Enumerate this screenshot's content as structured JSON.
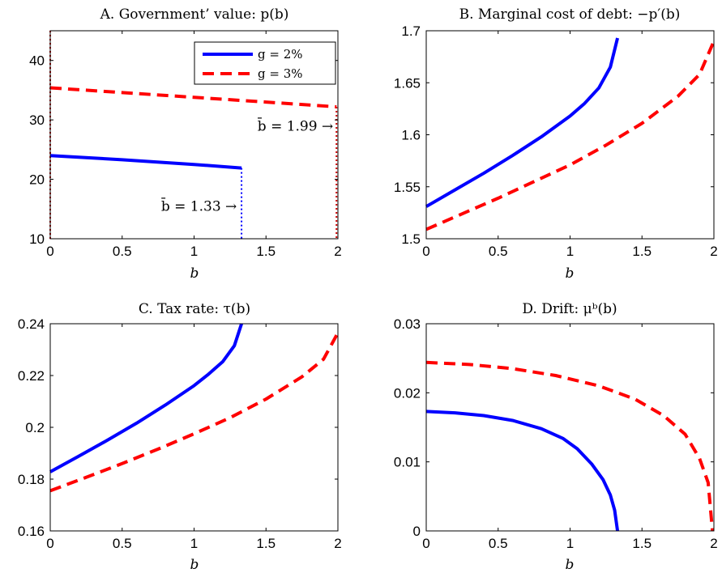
{
  "legend": {
    "entries": [
      {
        "label": "g = 2%",
        "color": "#0000ff",
        "dash": "solid"
      },
      {
        "label": "g = 3%",
        "color": "#ff0000",
        "dash": "dashed"
      }
    ],
    "placement": "top-right of panel A"
  },
  "chart_data": [
    {
      "id": "A",
      "type": "line",
      "title": "A. Government’ value: p(b)",
      "xlabel": "b",
      "ylabel": "",
      "xlim": [
        0,
        2
      ],
      "ylim": [
        10,
        45
      ],
      "xticks": [
        "0",
        "0.5",
        "1",
        "1.5",
        "2"
      ],
      "yticks": [
        "10",
        "20",
        "30",
        "40"
      ],
      "grid": false,
      "legend": true,
      "series": [
        {
          "name": "g = 2%",
          "color": "#0000ff",
          "dash": "solid",
          "x": [
            0,
            0.5,
            1.0,
            1.33
          ],
          "y": [
            24.0,
            23.3,
            22.5,
            21.9
          ]
        },
        {
          "name": "g = 3%",
          "color": "#ff0000",
          "dash": "dashed",
          "x": [
            0,
            0.5,
            1.0,
            1.5,
            1.99
          ],
          "y": [
            35.4,
            34.6,
            33.8,
            33.0,
            32.2
          ]
        }
      ],
      "vlines": [
        {
          "x": 1.33,
          "color": "#0000ff",
          "style": "dotted"
        },
        {
          "x": 1.99,
          "color": "#cc0000",
          "style": "dotted"
        },
        {
          "x": 0,
          "color": "#cc0000",
          "style": "dotted"
        }
      ],
      "annotations": [
        {
          "text": "b̄ = 1.33 →",
          "x": 1.32,
          "y": 15.5,
          "anchor": "end"
        },
        {
          "text": "b̄ = 1.99 →",
          "x": 1.99,
          "y": 29.0,
          "anchor": "end"
        }
      ]
    },
    {
      "id": "B",
      "type": "line",
      "title": "B. Marginal cost of debt: −p′(b)",
      "xlabel": "b",
      "ylabel": "",
      "xlim": [
        0,
        2
      ],
      "ylim": [
        1.5,
        1.7
      ],
      "xticks": [
        "0",
        "0.5",
        "1",
        "1.5",
        "2"
      ],
      "yticks": [
        "1.5",
        "1.55",
        "1.6",
        "1.65",
        "1.7"
      ],
      "grid": false,
      "series": [
        {
          "name": "g = 2%",
          "color": "#0000ff",
          "dash": "solid",
          "x": [
            0,
            0.2,
            0.4,
            0.6,
            0.8,
            1.0,
            1.1,
            1.2,
            1.28,
            1.33
          ],
          "y": [
            1.531,
            1.547,
            1.563,
            1.58,
            1.598,
            1.618,
            1.63,
            1.645,
            1.665,
            1.693
          ]
        },
        {
          "name": "g = 3%",
          "color": "#ff0000",
          "dash": "dashed",
          "x": [
            0,
            0.25,
            0.5,
            0.75,
            1.0,
            1.25,
            1.5,
            1.75,
            1.9,
            2.0
          ],
          "y": [
            1.509,
            1.524,
            1.539,
            1.555,
            1.571,
            1.59,
            1.611,
            1.637,
            1.658,
            1.69
          ]
        }
      ]
    },
    {
      "id": "C",
      "type": "line",
      "title": "C. Tax rate: τ(b)",
      "xlabel": "b",
      "ylabel": "",
      "xlim": [
        0,
        2
      ],
      "ylim": [
        0.16,
        0.24
      ],
      "xticks": [
        "0",
        "0.5",
        "1",
        "1.5",
        "2"
      ],
      "yticks": [
        "0.16",
        "0.18",
        "0.2",
        "0.22",
        "0.24"
      ],
      "grid": false,
      "series": [
        {
          "name": "g = 2%",
          "color": "#0000ff",
          "dash": "solid",
          "x": [
            0,
            0.2,
            0.4,
            0.6,
            0.8,
            1.0,
            1.1,
            1.2,
            1.28,
            1.33
          ],
          "y": [
            0.1828,
            0.1889,
            0.1951,
            0.2016,
            0.2086,
            0.2161,
            0.2205,
            0.2254,
            0.2315,
            0.24
          ]
        },
        {
          "name": "g = 3%",
          "color": "#ff0000",
          "dash": "dashed",
          "x": [
            0,
            0.25,
            0.5,
            0.75,
            1.0,
            1.25,
            1.5,
            1.75,
            1.9,
            2.0
          ],
          "y": [
            0.1755,
            0.1807,
            0.186,
            0.1916,
            0.1975,
            0.2037,
            0.2109,
            0.2195,
            0.2263,
            0.2365
          ]
        }
      ]
    },
    {
      "id": "D",
      "type": "line",
      "title": "D. Drift: μᵇ(b)",
      "xlabel": "b",
      "ylabel": "",
      "xlim": [
        0,
        2
      ],
      "ylim": [
        0,
        0.03
      ],
      "xticks": [
        "0",
        "0.5",
        "1",
        "1.5",
        "2"
      ],
      "yticks": [
        "0",
        "0.01",
        "0.02",
        "0.03"
      ],
      "grid": false,
      "series": [
        {
          "name": "g = 2%",
          "color": "#0000ff",
          "dash": "solid",
          "x": [
            0,
            0.2,
            0.4,
            0.6,
            0.8,
            0.95,
            1.05,
            1.15,
            1.23,
            1.28,
            1.31,
            1.33
          ],
          "y": [
            0.0173,
            0.0171,
            0.0167,
            0.016,
            0.0148,
            0.0134,
            0.0119,
            0.0097,
            0.0074,
            0.0052,
            0.003,
            0.0
          ]
        },
        {
          "name": "g = 3%",
          "color": "#ff0000",
          "dash": "dashed",
          "x": [
            0,
            0.3,
            0.6,
            0.9,
            1.2,
            1.45,
            1.65,
            1.8,
            1.9,
            1.96,
            1.99
          ],
          "y": [
            0.0244,
            0.0241,
            0.0235,
            0.0225,
            0.021,
            0.0191,
            0.0167,
            0.014,
            0.0105,
            0.007,
            0.0
          ]
        }
      ]
    }
  ]
}
